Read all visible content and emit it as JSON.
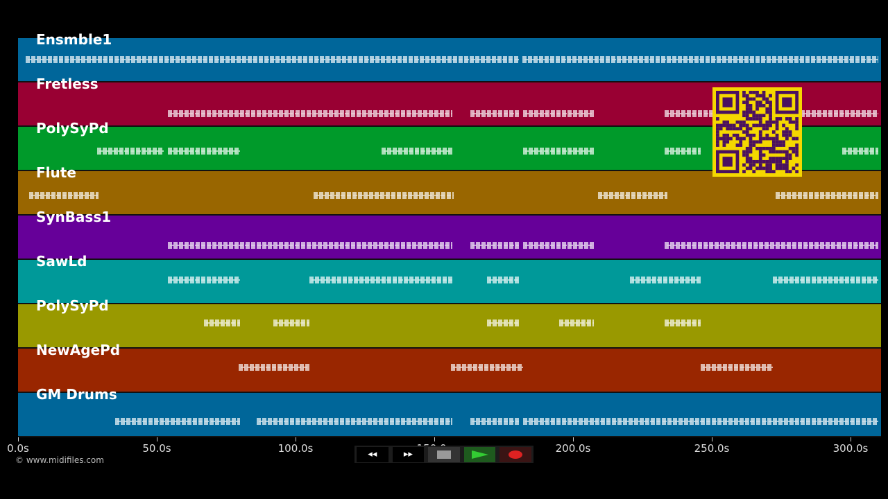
{
  "time_axis": {
    "unit": "s",
    "seconds_visible": 311,
    "ticks": [
      "0.0s",
      "50.0s",
      "100.0s",
      "150.0s",
      "200.0s",
      "250.0s",
      "300.0s"
    ],
    "tick_values": [
      0,
      50,
      100,
      150,
      200,
      250,
      300
    ]
  },
  "tracks": [
    {
      "name": "Ensmble1",
      "color": "#00669a",
      "segments": [
        [
          2.75,
          180.5
        ],
        [
          181.75,
          310
        ]
      ]
    },
    {
      "name": "Fretless",
      "color": "#990033",
      "segments": [
        [
          54,
          156.5
        ],
        [
          163,
          180.5
        ],
        [
          182,
          207.5
        ],
        [
          233,
          251
        ],
        [
          282,
          310
        ]
      ]
    },
    {
      "name": "PolySyPd",
      "color": "#009a2a",
      "segments": [
        [
          28.5,
          52.5
        ],
        [
          54,
          80
        ],
        [
          131,
          156.5
        ],
        [
          182,
          207.5
        ],
        [
          233,
          246
        ],
        [
          297,
          310
        ]
      ]
    },
    {
      "name": "Flute",
      "color": "#996600",
      "segments": [
        [
          4,
          29
        ],
        [
          106.5,
          157
        ],
        [
          209,
          234
        ],
        [
          273,
          310
        ]
      ]
    },
    {
      "name": "SynBass1",
      "color": "#660099",
      "segments": [
        [
          54,
          156.5
        ],
        [
          163,
          180.5
        ],
        [
          182,
          207.5
        ],
        [
          233,
          310
        ]
      ]
    },
    {
      "name": "SawLd",
      "color": "#009999",
      "segments": [
        [
          54,
          80
        ],
        [
          105,
          156.5
        ],
        [
          169,
          180.5
        ],
        [
          220.5,
          246
        ],
        [
          272,
          310
        ]
      ]
    },
    {
      "name": "PolySyPd",
      "color": "#999900",
      "segments": [
        [
          67,
          80
        ],
        [
          92,
          105
        ],
        [
          169,
          180.5
        ],
        [
          195,
          207.5
        ],
        [
          233,
          246
        ]
      ]
    },
    {
      "name": "NewAgePd",
      "color": "#992600",
      "segments": [
        [
          79.5,
          105
        ],
        [
          156,
          182
        ],
        [
          246,
          272
        ]
      ]
    },
    {
      "name": "GM Drums",
      "color": "#006699",
      "segments": [
        [
          35,
          80
        ],
        [
          86,
          156.5
        ],
        [
          163,
          180.5
        ],
        [
          182,
          310
        ]
      ]
    }
  ],
  "copyright": "© www.midifiles.com",
  "controls": {
    "rewind": "◂◂",
    "fast_forward": "▸▸",
    "stop_color": "#999999",
    "play_color": "#33cc33",
    "record_color": "#dd2222"
  }
}
